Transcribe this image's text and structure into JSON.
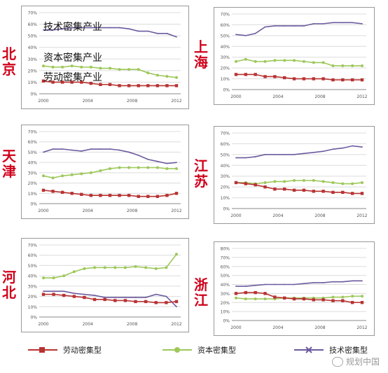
{
  "annotations": {
    "tech": "技术密集产业",
    "capital": "资本密集产业",
    "labor": "劳动密集产业"
  },
  "legend": {
    "labor": "劳动密集型",
    "capital": "资本密集型",
    "tech": "技术密集型"
  },
  "watermark": "规划中国",
  "colors": {
    "labor": "#b83232",
    "capital": "#9dc85a",
    "tech": "#6c5a9e",
    "grid": "#dcdcdc",
    "frame": "#999999"
  },
  "chart_data": [
    {
      "region": "北京",
      "type": "line",
      "yticks": [
        "0%",
        "10%",
        "20%",
        "30%",
        "40%",
        "50%",
        "60%",
        "70%"
      ],
      "xticks": [
        "2000",
        "2004",
        "2008",
        "2012"
      ],
      "series": [
        {
          "name": "技术密集型",
          "values": [
            55,
            55,
            56,
            57,
            57,
            57,
            57,
            57,
            57,
            56,
            54,
            54,
            52,
            52,
            49
          ]
        },
        {
          "name": "资本密集型",
          "values": [
            24,
            23,
            23,
            24,
            23,
            23,
            22,
            22,
            21,
            21,
            21,
            18,
            16,
            15,
            14
          ]
        },
        {
          "name": "劳动密集型",
          "values": [
            11,
            10,
            10,
            10,
            10,
            9,
            8,
            8,
            7,
            7,
            7,
            7,
            7,
            7,
            7
          ]
        }
      ]
    },
    {
      "region": "上海",
      "type": "line",
      "yticks": [
        "0%",
        "10%",
        "20%",
        "30%",
        "40%",
        "50%",
        "60%",
        "70%"
      ],
      "xticks": [
        "2000",
        "2004",
        "2008",
        "2012"
      ],
      "series": [
        {
          "name": "技术密集型",
          "values": [
            51,
            50,
            52,
            58,
            59,
            59,
            59,
            59,
            61,
            61,
            62,
            62,
            62,
            61
          ]
        },
        {
          "name": "资本密集型",
          "values": [
            26,
            28,
            26,
            26,
            27,
            27,
            27,
            26,
            25,
            25,
            22,
            22,
            22,
            22
          ]
        },
        {
          "name": "劳动密集型",
          "values": [
            14,
            14,
            14,
            12,
            12,
            11,
            10,
            10,
            10,
            10,
            9,
            9,
            9,
            9
          ]
        }
      ]
    },
    {
      "region": "天津",
      "type": "line",
      "yticks": [
        "0%",
        "10%",
        "20%",
        "30%",
        "40%",
        "50%",
        "60%",
        "70%"
      ],
      "xticks": [
        "2000",
        "2004",
        "2008",
        "2012"
      ],
      "series": [
        {
          "name": "技术密集型",
          "values": [
            50,
            53,
            53,
            52,
            51,
            53,
            53,
            53,
            52,
            50,
            47,
            43,
            41,
            39,
            40
          ]
        },
        {
          "name": "资本密集型",
          "values": [
            27,
            25,
            27,
            28,
            29,
            30,
            32,
            34,
            35,
            35,
            35,
            35,
            35,
            34,
            34
          ]
        },
        {
          "name": "劳动密集型",
          "values": [
            13,
            12,
            11,
            10,
            9,
            8,
            8,
            8,
            8,
            8,
            7,
            7,
            7,
            8,
            10
          ]
        }
      ]
    },
    {
      "region": "江苏",
      "type": "line",
      "yticks": [
        "0%",
        "10%",
        "20%",
        "30%",
        "40%",
        "50%",
        "60%",
        "70%"
      ],
      "xticks": [
        "2000",
        "2004",
        "2008",
        "2012"
      ],
      "series": [
        {
          "name": "技术密集型",
          "values": [
            47,
            47,
            48,
            50,
            50,
            50,
            50,
            51,
            52,
            53,
            55,
            56,
            58,
            57
          ]
        },
        {
          "name": "资本密集型",
          "values": [
            24,
            24,
            23,
            24,
            25,
            25,
            26,
            26,
            26,
            25,
            24,
            23,
            23,
            24
          ]
        },
        {
          "name": "劳动密集型",
          "values": [
            24,
            23,
            22,
            20,
            18,
            18,
            17,
            17,
            16,
            16,
            15,
            15,
            14,
            14
          ]
        }
      ]
    },
    {
      "region": "河北",
      "type": "line",
      "yticks": [
        "0%",
        "10%",
        "20%",
        "30%",
        "40%",
        "50%",
        "60%",
        "70%"
      ],
      "xticks": [
        "2000",
        "2004",
        "2008",
        "2012"
      ],
      "series": [
        {
          "name": "技术密集型",
          "values": [
            25,
            25,
            25,
            23,
            22,
            21,
            19,
            19,
            19,
            19,
            19,
            22,
            20,
            10
          ]
        },
        {
          "name": "资本密集型",
          "values": [
            38,
            38,
            40,
            44,
            47,
            48,
            48,
            48,
            48,
            49,
            48,
            47,
            48,
            61
          ]
        },
        {
          "name": "劳动密集型",
          "values": [
            22,
            22,
            21,
            20,
            19,
            17,
            17,
            16,
            16,
            15,
            15,
            14,
            14,
            15
          ]
        }
      ]
    },
    {
      "region": "浙江",
      "type": "line",
      "yticks": [
        "0%",
        "10%",
        "20%",
        "30%",
        "40%",
        "50%",
        "60%",
        "70%",
        "80%"
      ],
      "xticks": [
        "2000",
        "2004",
        "2008",
        "2012"
      ],
      "series": [
        {
          "name": "技术密集型",
          "values": [
            38,
            38,
            39,
            40,
            40,
            40,
            40,
            41,
            42,
            42,
            43,
            43,
            44,
            44
          ]
        },
        {
          "name": "资本密集型",
          "values": [
            25,
            24,
            24,
            24,
            24,
            25,
            25,
            25,
            25,
            25,
            26,
            26,
            27,
            27
          ]
        },
        {
          "name": "劳动密集型",
          "values": [
            30,
            31,
            31,
            30,
            26,
            25,
            24,
            24,
            23,
            23,
            22,
            22,
            20,
            20
          ]
        }
      ]
    }
  ]
}
